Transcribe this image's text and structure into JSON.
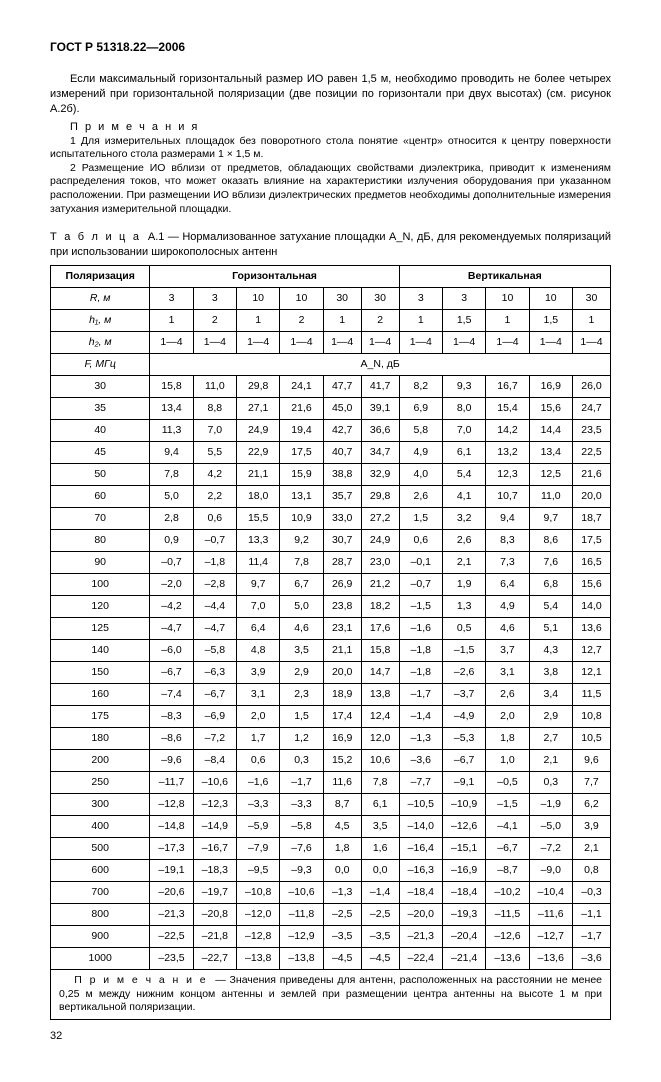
{
  "header": "ГОСТ Р 51318.22—2006",
  "paragraph1": "Если максимальный горизонтальный размер ИО равен 1,5 м, необходимо проводить не более четырех измерений при горизонтальной поляризации (две позиции по горизонтали при двух высотах) (см. рисунок А.2б).",
  "notesTitle": "П р и м е ч а н и я",
  "note1": "1 Для измерительных площадок без поворотного стола понятие «центр» относится к центру поверхности испытательного стола размерами 1 × 1,5 м.",
  "note2": "2 Размещение ИО вблизи от предметов, обладающих свойствами диэлектрика, приводит к изменениям распределения токов, что может оказать влияние на характеристики излучения оборудования при указанном расположении. При размещении ИО вблизи диэлектрических предметов необходимы дополнительные измерения затухания измерительной площадки.",
  "tableTitlePrefix": "Т а б л и ц а",
  "tableTitle": "А.1 — Нормализованное затухание площадки A_N, дБ, для рекомендуемых поляризаций при использовании широкополосных антенн",
  "colHeaders": {
    "polarization": "Поляризация",
    "horizontal": "Горизонтальная",
    "vertical": "Вертикальная"
  },
  "rowLabels": {
    "R": "R, м",
    "h1": "h₁, м",
    "h2": "h₂, м",
    "F": "F, МГц",
    "An": "A_N, дБ"
  },
  "RValues": [
    "3",
    "3",
    "10",
    "10",
    "30",
    "30",
    "3",
    "3",
    "10",
    "10",
    "30"
  ],
  "h1Values": [
    "1",
    "2",
    "1",
    "2",
    "1",
    "2",
    "1",
    "1,5",
    "1",
    "1,5",
    "1"
  ],
  "h2Values": [
    "1—4",
    "1—4",
    "1—4",
    "1—4",
    "1—4",
    "1—4",
    "1—4",
    "1—4",
    "1—4",
    "1—4",
    "1—4"
  ],
  "freqs": [
    "30",
    "35",
    "40",
    "45",
    "50",
    "60",
    "70",
    "80",
    "90",
    "100",
    "120",
    "125",
    "140",
    "150",
    "160",
    "175",
    "180",
    "200",
    "250",
    "300",
    "400",
    "500",
    "600",
    "700",
    "800",
    "900",
    "1000"
  ],
  "data": [
    [
      "15,8",
      "11,0",
      "29,8",
      "24,1",
      "47,7",
      "41,7",
      "8,2",
      "9,3",
      "16,7",
      "16,9",
      "26,0"
    ],
    [
      "13,4",
      "8,8",
      "27,1",
      "21,6",
      "45,0",
      "39,1",
      "6,9",
      "8,0",
      "15,4",
      "15,6",
      "24,7"
    ],
    [
      "11,3",
      "7,0",
      "24,9",
      "19,4",
      "42,7",
      "36,6",
      "5,8",
      "7,0",
      "14,2",
      "14,4",
      "23,5"
    ],
    [
      "9,4",
      "5,5",
      "22,9",
      "17,5",
      "40,7",
      "34,7",
      "4,9",
      "6,1",
      "13,2",
      "13,4",
      "22,5"
    ],
    [
      "7,8",
      "4,2",
      "21,1",
      "15,9",
      "38,8",
      "32,9",
      "4,0",
      "5,4",
      "12,3",
      "12,5",
      "21,6"
    ],
    [
      "5,0",
      "2,2",
      "18,0",
      "13,1",
      "35,7",
      "29,8",
      "2,6",
      "4,1",
      "10,7",
      "11,0",
      "20,0"
    ],
    [
      "2,8",
      "0,6",
      "15,5",
      "10,9",
      "33,0",
      "27,2",
      "1,5",
      "3,2",
      "9,4",
      "9,7",
      "18,7"
    ],
    [
      "0,9",
      "–0,7",
      "13,3",
      "9,2",
      "30,7",
      "24,9",
      "0,6",
      "2,6",
      "8,3",
      "8,6",
      "17,5"
    ],
    [
      "–0,7",
      "–1,8",
      "11,4",
      "7,8",
      "28,7",
      "23,0",
      "–0,1",
      "2,1",
      "7,3",
      "7,6",
      "16,5"
    ],
    [
      "–2,0",
      "–2,8",
      "9,7",
      "6,7",
      "26,9",
      "21,2",
      "–0,7",
      "1,9",
      "6,4",
      "6,8",
      "15,6"
    ],
    [
      "–4,2",
      "–4,4",
      "7,0",
      "5,0",
      "23,8",
      "18,2",
      "–1,5",
      "1,3",
      "4,9",
      "5,4",
      "14,0"
    ],
    [
      "–4,7",
      "–4,7",
      "6,4",
      "4,6",
      "23,1",
      "17,6",
      "–1,6",
      "0,5",
      "4,6",
      "5,1",
      "13,6"
    ],
    [
      "–6,0",
      "–5,8",
      "4,8",
      "3,5",
      "21,1",
      "15,8",
      "–1,8",
      "–1,5",
      "3,7",
      "4,3",
      "12,7"
    ],
    [
      "–6,7",
      "–6,3",
      "3,9",
      "2,9",
      "20,0",
      "14,7",
      "–1,8",
      "–2,6",
      "3,1",
      "3,8",
      "12,1"
    ],
    [
      "–7,4",
      "–6,7",
      "3,1",
      "2,3",
      "18,9",
      "13,8",
      "–1,7",
      "–3,7",
      "2,6",
      "3,4",
      "11,5"
    ],
    [
      "–8,3",
      "–6,9",
      "2,0",
      "1,5",
      "17,4",
      "12,4",
      "–1,4",
      "–4,9",
      "2,0",
      "2,9",
      "10,8"
    ],
    [
      "–8,6",
      "–7,2",
      "1,7",
      "1,2",
      "16,9",
      "12,0",
      "–1,3",
      "–5,3",
      "1,8",
      "2,7",
      "10,5"
    ],
    [
      "–9,6",
      "–8,4",
      "0,6",
      "0,3",
      "15,2",
      "10,6",
      "–3,6",
      "–6,7",
      "1,0",
      "2,1",
      "9,6"
    ],
    [
      "–11,7",
      "–10,6",
      "–1,6",
      "–1,7",
      "11,6",
      "7,8",
      "–7,7",
      "–9,1",
      "–0,5",
      "0,3",
      "7,7"
    ],
    [
      "–12,8",
      "–12,3",
      "–3,3",
      "–3,3",
      "8,7",
      "6,1",
      "–10,5",
      "–10,9",
      "–1,5",
      "–1,9",
      "6,2"
    ],
    [
      "–14,8",
      "–14,9",
      "–5,9",
      "–5,8",
      "4,5",
      "3,5",
      "–14,0",
      "–12,6",
      "–4,1",
      "–5,0",
      "3,9"
    ],
    [
      "–17,3",
      "–16,7",
      "–7,9",
      "–7,6",
      "1,8",
      "1,6",
      "–16,4",
      "–15,1",
      "–6,7",
      "–7,2",
      "2,1"
    ],
    [
      "–19,1",
      "–18,3",
      "–9,5",
      "–9,3",
      "0,0",
      "0,0",
      "–16,3",
      "–16,9",
      "–8,7",
      "–9,0",
      "0,8"
    ],
    [
      "–20,6",
      "–19,7",
      "–10,8",
      "–10,6",
      "–1,3",
      "–1,4",
      "–18,4",
      "–18,4",
      "–10,2",
      "–10,4",
      "–0,3"
    ],
    [
      "–21,3",
      "–20,8",
      "–12,0",
      "–11,8",
      "–2,5",
      "–2,5",
      "–20,0",
      "–19,3",
      "–11,5",
      "–11,6",
      "–1,1"
    ],
    [
      "–22,5",
      "–21,8",
      "–12,8",
      "–12,9",
      "–3,5",
      "–3,5",
      "–21,3",
      "–20,4",
      "–12,6",
      "–12,7",
      "–1,7"
    ],
    [
      "–23,5",
      "–22,7",
      "–13,8",
      "–13,8",
      "–4,5",
      "–4,5",
      "–22,4",
      "–21,4",
      "–13,6",
      "–13,6",
      "–3,6"
    ]
  ],
  "footnotePrefix": "П р и м е ч а н и е",
  "footnote": "— Значения приведены для антенн, расположенных на расстоянии не менее 0,25 м между нижним концом антенны и землей при размещении центра антенны на высоте 1 м при вертикальной поляризации.",
  "pageNum": "32"
}
